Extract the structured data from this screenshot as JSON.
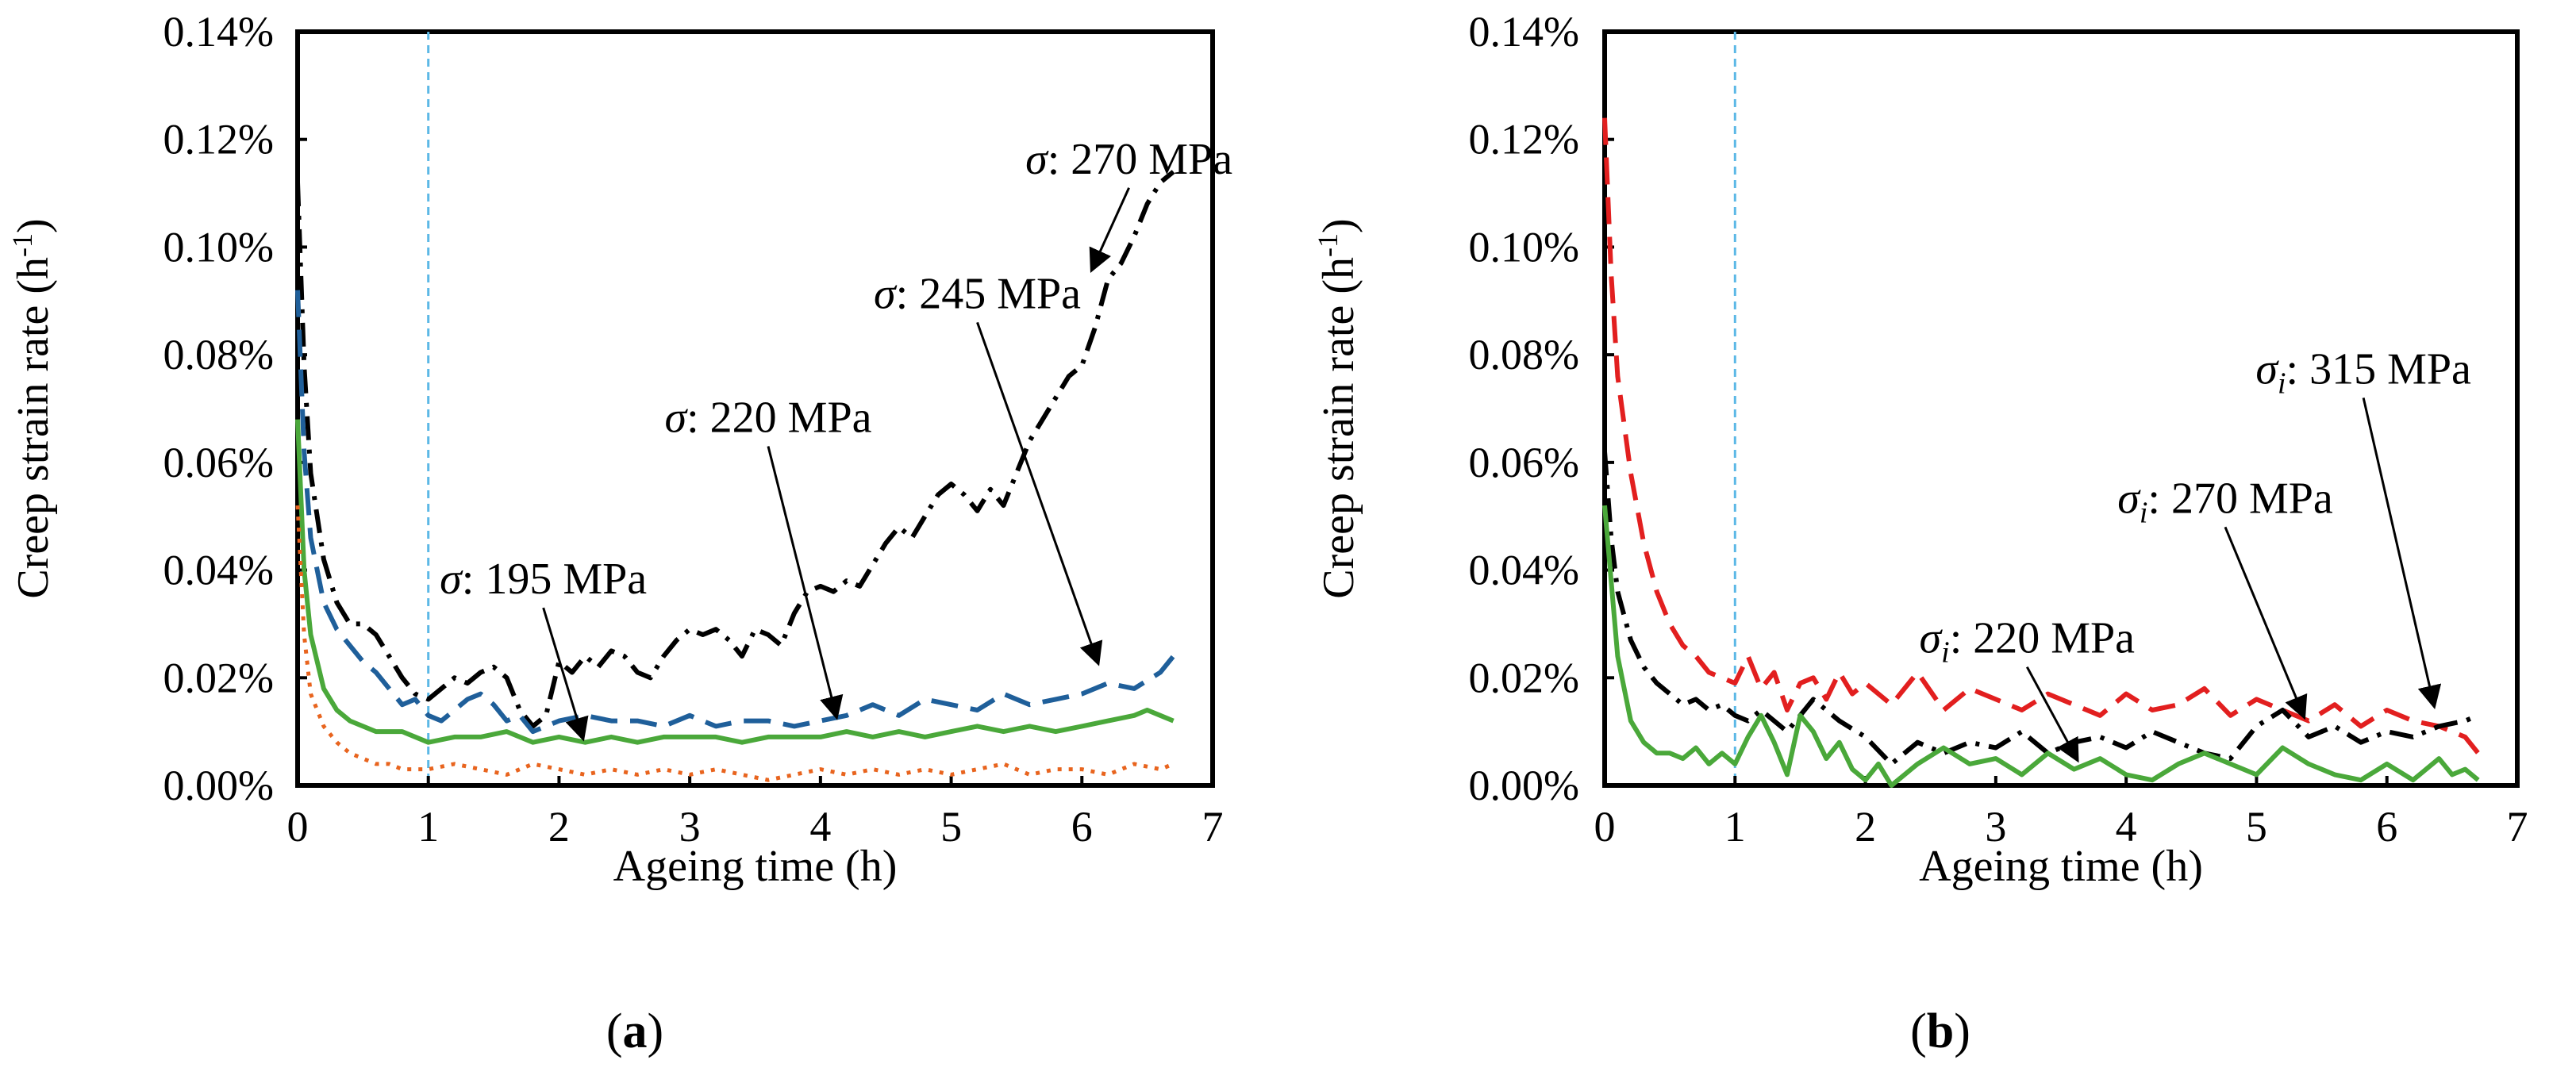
{
  "chart_data": [
    {
      "type": "line",
      "panel_caption": "(a)",
      "xlabel": "Ageing time (h)",
      "ylabel": "Creep strain rate (h",
      "ylabel_sup": "-1",
      "ylabel_close": ")",
      "xlim": [
        0,
        7
      ],
      "ylim": [
        0,
        0.0014
      ],
      "x_ticks": [
        "0",
        "1",
        "2",
        "3",
        "4",
        "5",
        "6",
        "7"
      ],
      "y_ticks": [
        "0.00%",
        "0.02%",
        "0.04%",
        "0.06%",
        "0.08%",
        "0.10%",
        "0.12%",
        "0.14%"
      ],
      "vline_x": 1.0,
      "series": [
        {
          "name": "σ: 270 MPa",
          "color": "#000000",
          "style": "dashdot",
          "x": [
            0,
            0.05,
            0.1,
            0.2,
            0.3,
            0.4,
            0.5,
            0.6,
            0.7,
            0.8,
            0.9,
            1.0,
            1.1,
            1.2,
            1.3,
            1.4,
            1.5,
            1.6,
            1.7,
            1.8,
            1.9,
            2.0,
            2.1,
            2.2,
            2.3,
            2.4,
            2.5,
            2.6,
            2.7,
            2.8,
            2.9,
            3.0,
            3.1,
            3.2,
            3.3,
            3.4,
            3.5,
            3.6,
            3.7,
            3.8,
            3.9,
            4.0,
            4.1,
            4.2,
            4.3,
            4.4,
            4.5,
            4.6,
            4.7,
            4.8,
            4.9,
            5.0,
            5.1,
            5.2,
            5.3,
            5.4,
            5.5,
            5.6,
            5.7,
            5.8,
            5.9,
            6.0,
            6.1,
            6.2,
            6.3,
            6.4,
            6.5,
            6.6,
            6.7
          ],
          "y": [
            0.00112,
            0.00078,
            0.00058,
            0.00042,
            0.00034,
            0.0003,
            0.0003,
            0.00028,
            0.00024,
            0.0002,
            0.00017,
            0.00016,
            0.00018,
            0.0002,
            0.00019,
            0.00021,
            0.00022,
            0.0002,
            0.00014,
            0.00011,
            0.00013,
            0.00023,
            0.00021,
            0.00024,
            0.00022,
            0.00025,
            0.00024,
            0.00021,
            0.0002,
            0.00024,
            0.00027,
            0.00029,
            0.00028,
            0.00029,
            0.00027,
            0.00024,
            0.00029,
            0.00028,
            0.00026,
            0.00032,
            0.00036,
            0.00037,
            0.00036,
            0.00038,
            0.00037,
            0.00041,
            0.00045,
            0.00048,
            0.00046,
            0.0005,
            0.00054,
            0.00056,
            0.00054,
            0.00051,
            0.00055,
            0.00052,
            0.00058,
            0.00064,
            0.00068,
            0.00072,
            0.00076,
            0.00078,
            0.00085,
            0.00094,
            0.00097,
            0.00102,
            0.00108,
            0.00112,
            0.00114
          ]
        },
        {
          "name": "σ: 245 MPa",
          "color": "#1f5f9a",
          "style": "dashed",
          "x": [
            0,
            0.05,
            0.1,
            0.2,
            0.3,
            0.4,
            0.5,
            0.6,
            0.7,
            0.8,
            0.9,
            1.0,
            1.1,
            1.2,
            1.3,
            1.4,
            1.5,
            1.6,
            1.7,
            1.8,
            1.9,
            2.0,
            2.2,
            2.4,
            2.6,
            2.8,
            3.0,
            3.2,
            3.4,
            3.6,
            3.8,
            4.0,
            4.2,
            4.4,
            4.6,
            4.8,
            5.0,
            5.2,
            5.4,
            5.6,
            5.8,
            6.0,
            6.2,
            6.4,
            6.6,
            6.7
          ],
          "y": [
            0.00092,
            0.00062,
            0.00046,
            0.00034,
            0.00029,
            0.00026,
            0.00023,
            0.00021,
            0.00018,
            0.00015,
            0.00016,
            0.00013,
            0.00012,
            0.00014,
            0.00016,
            0.00017,
            0.00015,
            0.00012,
            0.00013,
            0.0001,
            0.00011,
            0.00012,
            0.00013,
            0.00012,
            0.00012,
            0.00011,
            0.00013,
            0.00011,
            0.00012,
            0.00012,
            0.00011,
            0.00012,
            0.00013,
            0.00015,
            0.00013,
            0.00016,
            0.00015,
            0.00014,
            0.00017,
            0.00015,
            0.00016,
            0.00017,
            0.00019,
            0.00018,
            0.00021,
            0.00024
          ]
        },
        {
          "name": "σ: 220 MPa",
          "color": "#4aa83a",
          "style": "solid",
          "x": [
            0,
            0.05,
            0.1,
            0.2,
            0.3,
            0.4,
            0.5,
            0.6,
            0.8,
            1.0,
            1.2,
            1.4,
            1.6,
            1.8,
            2.0,
            2.2,
            2.4,
            2.6,
            2.8,
            3.0,
            3.2,
            3.4,
            3.6,
            3.8,
            4.0,
            4.2,
            4.4,
            4.6,
            4.8,
            5.0,
            5.2,
            5.4,
            5.6,
            5.8,
            6.0,
            6.2,
            6.4,
            6.5,
            6.6,
            6.7
          ],
          "y": [
            0.00068,
            0.0004,
            0.00028,
            0.00018,
            0.00014,
            0.00012,
            0.00011,
            0.0001,
            0.0001,
            8e-05,
            9e-05,
            9e-05,
            0.0001,
            8e-05,
            9e-05,
            8e-05,
            9e-05,
            8e-05,
            9e-05,
            9e-05,
            9e-05,
            8e-05,
            9e-05,
            9e-05,
            9e-05,
            0.0001,
            9e-05,
            0.0001,
            9e-05,
            0.0001,
            0.00011,
            0.0001,
            0.00011,
            0.0001,
            0.00011,
            0.00012,
            0.00013,
            0.00014,
            0.00013,
            0.00012
          ]
        },
        {
          "name": "σ: 195 MPa",
          "color": "#e8641e",
          "style": "dotted",
          "x": [
            0,
            0.05,
            0.1,
            0.2,
            0.3,
            0.4,
            0.5,
            0.6,
            0.7,
            0.8,
            1.0,
            1.2,
            1.4,
            1.6,
            1.8,
            2.0,
            2.2,
            2.4,
            2.6,
            2.8,
            3.0,
            3.2,
            3.4,
            3.6,
            3.8,
            4.0,
            4.2,
            4.4,
            4.6,
            4.8,
            5.0,
            5.2,
            5.4,
            5.6,
            5.8,
            6.0,
            6.2,
            6.4,
            6.6,
            6.7
          ],
          "y": [
            0.00052,
            0.00028,
            0.00017,
            0.00011,
            8e-05,
            6e-05,
            5e-05,
            4e-05,
            4e-05,
            3e-05,
            3e-05,
            4e-05,
            3e-05,
            2e-05,
            4e-05,
            3e-05,
            2e-05,
            3e-05,
            2e-05,
            3e-05,
            2e-05,
            3e-05,
            2e-05,
            1e-05,
            2e-05,
            3e-05,
            2e-05,
            3e-05,
            2e-05,
            3e-05,
            2e-05,
            3e-05,
            4e-05,
            2e-05,
            3e-05,
            3e-05,
            2e-05,
            4e-05,
            3e-05,
            4e-05
          ]
        }
      ],
      "annotations": [
        {
          "sym": "σ",
          "sub": "",
          "rest": ": 270 MPa",
          "tail": [
            6.36,
            0.00111
          ],
          "head": [
            6.08,
            0.00096
          ]
        },
        {
          "sym": "σ",
          "sub": "",
          "rest": ": 245 MPa",
          "tail": [
            5.2,
            0.00086
          ],
          "head": [
            6.12,
            0.00023
          ]
        },
        {
          "sym": "σ",
          "sub": "",
          "rest": ": 220 MPa",
          "tail": [
            3.6,
            0.00063
          ],
          "head": [
            4.12,
            0.00013
          ]
        },
        {
          "sym": "σ",
          "sub": "",
          "rest": ": 195 MPa",
          "tail": [
            1.88,
            0.00033
          ],
          "head": [
            2.18,
            9e-05
          ]
        }
      ]
    },
    {
      "type": "line",
      "panel_caption": "(b)",
      "xlabel": "Ageing time (h)",
      "ylabel": "Creep strain rate (h",
      "ylabel_sup": "-1",
      "ylabel_close": ")",
      "xlim": [
        0,
        7
      ],
      "ylim": [
        0,
        0.0014
      ],
      "x_ticks": [
        "0",
        "1",
        "2",
        "3",
        "4",
        "5",
        "6",
        "7"
      ],
      "y_ticks": [
        "0.00%",
        "0.02%",
        "0.04%",
        "0.06%",
        "0.08%",
        "0.10%",
        "0.12%",
        "0.14%"
      ],
      "vline_x": 1.0,
      "series": [
        {
          "name": "σi: 315 MPa",
          "color": "#e21f1f",
          "style": "dashed",
          "x": [
            0,
            0.05,
            0.1,
            0.2,
            0.3,
            0.4,
            0.5,
            0.6,
            0.7,
            0.8,
            0.9,
            1.0,
            1.1,
            1.2,
            1.3,
            1.4,
            1.5,
            1.6,
            1.7,
            1.8,
            1.9,
            2.0,
            2.2,
            2.4,
            2.6,
            2.8,
            3.0,
            3.2,
            3.4,
            3.6,
            3.8,
            4.0,
            4.2,
            4.4,
            4.6,
            4.8,
            5.0,
            5.2,
            5.4,
            5.6,
            5.8,
            6.0,
            6.2,
            6.4,
            6.6,
            6.7
          ],
          "y": [
            0.00124,
            0.00095,
            0.00076,
            0.00058,
            0.00045,
            0.00036,
            0.0003,
            0.00026,
            0.00024,
            0.00021,
            0.0002,
            0.00019,
            0.00024,
            0.00018,
            0.00021,
            0.00014,
            0.00019,
            0.0002,
            0.00016,
            0.00021,
            0.00017,
            0.00019,
            0.00015,
            0.00021,
            0.00014,
            0.00018,
            0.00016,
            0.00014,
            0.00017,
            0.00015,
            0.00013,
            0.00017,
            0.00014,
            0.00015,
            0.00018,
            0.00013,
            0.00016,
            0.00014,
            0.00012,
            0.00015,
            0.00011,
            0.00014,
            0.00012,
            0.00011,
            9e-05,
            6e-05
          ]
        },
        {
          "name": "σi: 270 MPa",
          "color": "#000000",
          "style": "dashdot",
          "x": [
            0,
            0.05,
            0.1,
            0.2,
            0.3,
            0.4,
            0.5,
            0.6,
            0.7,
            0.8,
            0.9,
            1.0,
            1.1,
            1.2,
            1.4,
            1.6,
            1.8,
            2.0,
            2.2,
            2.4,
            2.6,
            2.8,
            3.0,
            3.2,
            3.4,
            3.6,
            3.8,
            4.0,
            4.2,
            4.4,
            4.6,
            4.8,
            5.0,
            5.2,
            5.4,
            5.6,
            5.8,
            6.0,
            6.2,
            6.4,
            6.6,
            6.7
          ],
          "y": [
            0.00062,
            0.00046,
            0.00036,
            0.00027,
            0.00022,
            0.00019,
            0.00017,
            0.00015,
            0.00016,
            0.00014,
            0.00015,
            0.00013,
            0.00012,
            0.00014,
            0.0001,
            0.00016,
            0.00012,
            9e-05,
            4e-05,
            8e-05,
            6e-05,
            8e-05,
            7e-05,
            0.0001,
            6e-05,
            8e-05,
            9e-05,
            7e-05,
            0.0001,
            8e-05,
            6e-05,
            5e-05,
            0.00011,
            0.00014,
            9e-05,
            0.00011,
            8e-05,
            0.0001,
            9e-05,
            0.00011,
            0.00012,
            0.00013
          ]
        },
        {
          "name": "σi: 220 MPa",
          "color": "#4aa83a",
          "style": "solid",
          "x": [
            0,
            0.05,
            0.1,
            0.2,
            0.3,
            0.4,
            0.5,
            0.6,
            0.7,
            0.8,
            0.9,
            1.0,
            1.1,
            1.2,
            1.3,
            1.4,
            1.5,
            1.6,
            1.7,
            1.8,
            1.9,
            2.0,
            2.1,
            2.2,
            2.3,
            2.4,
            2.6,
            2.8,
            3.0,
            3.2,
            3.4,
            3.6,
            3.8,
            4.0,
            4.2,
            4.4,
            4.6,
            4.8,
            5.0,
            5.2,
            5.4,
            5.6,
            5.8,
            6.0,
            6.2,
            6.4,
            6.5,
            6.6,
            6.7
          ],
          "y": [
            0.00052,
            0.00038,
            0.00024,
            0.00012,
            8e-05,
            6e-05,
            6e-05,
            5e-05,
            7e-05,
            4e-05,
            6e-05,
            4e-05,
            9e-05,
            0.00013,
            8e-05,
            2e-05,
            0.00013,
            0.0001,
            5e-05,
            8e-05,
            3e-05,
            1e-05,
            4e-05,
            0.0,
            2e-05,
            4e-05,
            7e-05,
            4e-05,
            5e-05,
            2e-05,
            6e-05,
            3e-05,
            5e-05,
            2e-05,
            1e-05,
            4e-05,
            6e-05,
            4e-05,
            2e-05,
            7e-05,
            4e-05,
            2e-05,
            1e-05,
            4e-05,
            1e-05,
            5e-05,
            2e-05,
            3e-05,
            1e-05
          ]
        }
      ],
      "annotations": [
        {
          "sym": "σ",
          "sub": "i",
          "rest": ": 315 MPa",
          "tail": [
            5.82,
            0.00072
          ],
          "head": [
            6.36,
            0.00015
          ]
        },
        {
          "sym": "σ",
          "sub": "i",
          "rest": ": 270 MPa",
          "tail": [
            4.76,
            0.00048
          ],
          "head": [
            5.36,
            0.00013
          ]
        },
        {
          "sym": "σ",
          "sub": "i",
          "rest": ": 220 MPa",
          "tail": [
            3.24,
            0.00022
          ],
          "head": [
            3.62,
            5e-05
          ]
        }
      ]
    }
  ]
}
